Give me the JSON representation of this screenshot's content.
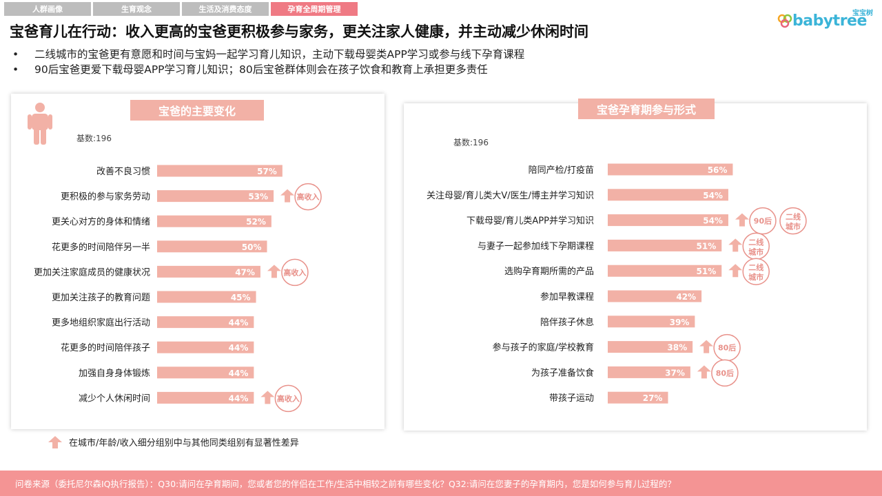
{
  "tabs": [
    {
      "label": "人群画像",
      "active": false
    },
    {
      "label": "生育观念",
      "active": false
    },
    {
      "label": "生活及消费态度",
      "active": false
    },
    {
      "label": "孕育全周期管理",
      "active": true
    }
  ],
  "logo": {
    "cn": "宝宝树",
    "word": "babytree"
  },
  "title": "宝爸育儿在行动：收入更高的宝爸更积极参与家务，更关注家人健康，并主动减少休闲时间",
  "bullets": [
    "二线城市的宝爸更有意愿和时间与宝妈一起学习育儿知识，主动下载母婴类APP学习或参与线下孕育课程",
    "90后宝爸更爱下载母婴APP学习育儿知识；80后宝爸群体则会在孩子饮食和教育上承担更多责任"
  ],
  "colors": {
    "bar": "#f2b1a6",
    "accent": "#ef7a84",
    "badge": "#e8918a",
    "arrow": "#f2b1a6",
    "footer": "#f49494"
  },
  "chart_data": [
    {
      "type": "bar",
      "orientation": "horizontal",
      "title": "宝爸的主要变化",
      "base": "基数:196",
      "categories": [
        "改善不良习惯",
        "更积极的参与家务劳动",
        "更关心对方的身体和情绪",
        "花更多的时间陪伴另一半",
        "更加关注家庭成员的健康状况",
        "更加关注孩子的教育问题",
        "更多地组织家庭出行活动",
        "花更多的时间陪伴孩子",
        "加强自身身体锻炼",
        "减少个人休闲时间"
      ],
      "values": [
        57,
        53,
        52,
        50,
        47,
        45,
        44,
        44,
        44,
        44
      ],
      "value_labels": [
        "57%",
        "53%",
        "52%",
        "50%",
        "47%",
        "45%",
        "44%",
        "44%",
        "44%",
        "44%"
      ],
      "annotations": [
        {
          "row": 1,
          "labels": [
            "高收入"
          ]
        },
        {
          "row": 4,
          "labels": [
            "高收入"
          ]
        },
        {
          "row": 9,
          "labels": [
            "高收入"
          ]
        }
      ]
    },
    {
      "type": "bar",
      "orientation": "horizontal",
      "title": "宝爸孕育期参与形式",
      "base": "基数:196",
      "categories": [
        "陪同产检/打疫苗",
        "关注母婴/育儿类大V/医生/博主并学习知识",
        "下载母婴/育儿类APP并学习知识",
        "与妻子一起参加线下孕期课程",
        "选购孕育期所需的产品",
        "参加早教课程",
        "陪伴孩子休息",
        "参与孩子的家庭/学校教育",
        "为孩子准备饮食",
        "带孩子运动"
      ],
      "values": [
        56,
        54,
        54,
        51,
        51,
        42,
        39,
        38,
        37,
        27
      ],
      "value_labels": [
        "56%",
        "54%",
        "54%",
        "51%",
        "51%",
        "42%",
        "39%",
        "38%",
        "37%",
        "27%"
      ],
      "annotations": [
        {
          "row": 2,
          "labels": [
            "90后",
            "二线城市"
          ]
        },
        {
          "row": 3,
          "labels": [
            "二线城市"
          ]
        },
        {
          "row": 4,
          "labels": [
            "二线城市"
          ]
        },
        {
          "row": 7,
          "labels": [
            "80后"
          ]
        },
        {
          "row": 8,
          "labels": [
            "80后"
          ]
        }
      ]
    }
  ],
  "legend": "在城市/年龄/收入细分组别中与其他同类组别有显著性差异",
  "footer": "问卷来源（委托尼尔森IQ执行报告）：Q30:请问在孕育期间，您或者您的伴侣在工作/生活中相较之前有哪些变化？Q32:请问在您妻子的孕育期内，您是如何参与育儿过程的？"
}
